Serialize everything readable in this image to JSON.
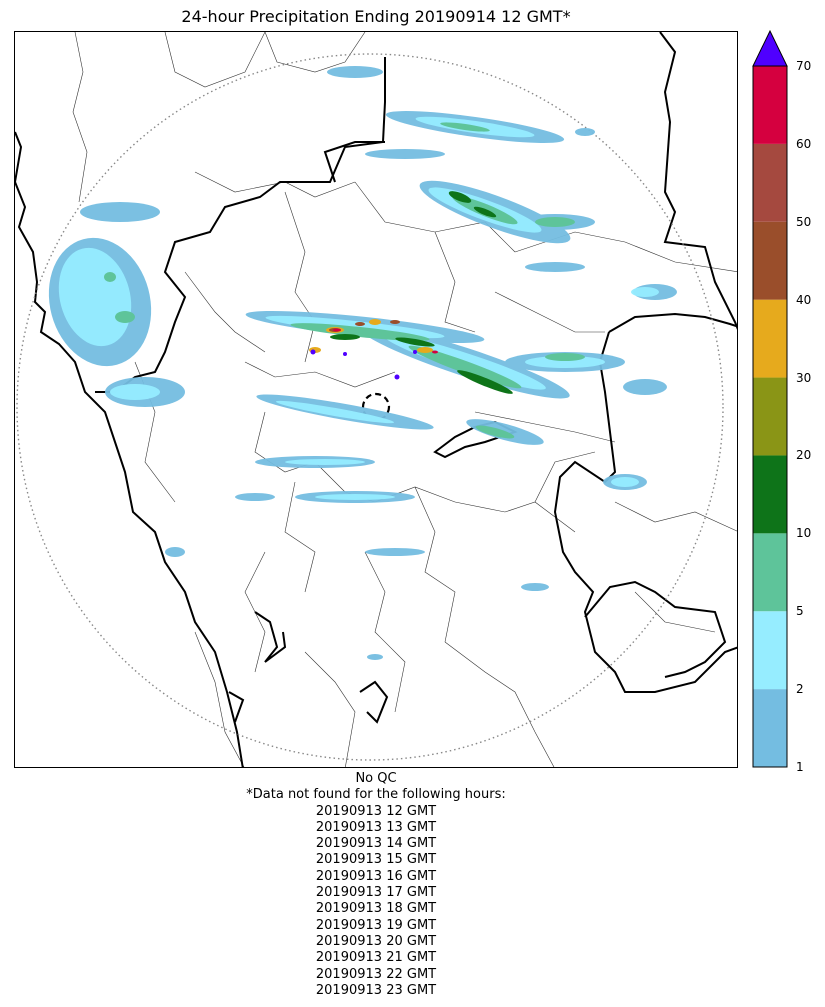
{
  "title": "24-hour Precipitation Ending 20190914 12 GMT*",
  "colorbar": {
    "ticks": [
      "1",
      "2",
      "5",
      "10",
      "20",
      "30",
      "40",
      "50",
      "60",
      "70"
    ],
    "colors": [
      "#74bde1",
      "#96edff",
      "#5ec49a",
      "#0e7419",
      "#8a9516",
      "#e6aa1d",
      "#9a4e2b",
      "#a5493f",
      "#d5003f"
    ],
    "over_color": "#4f00ff"
  },
  "notes": {
    "qc": "No QC",
    "missing_header": "*Data not found for the following hours:",
    "missing_hours": [
      "20190913 12 GMT",
      "20190913 13 GMT",
      "20190913 14 GMT",
      "20190913 15 GMT",
      "20190913 16 GMT",
      "20190913 17 GMT",
      "20190913 18 GMT",
      "20190913 19 GMT",
      "20190913 20 GMT",
      "20190913 21 GMT",
      "20190913 22 GMT",
      "20190913 23 GMT"
    ]
  }
}
